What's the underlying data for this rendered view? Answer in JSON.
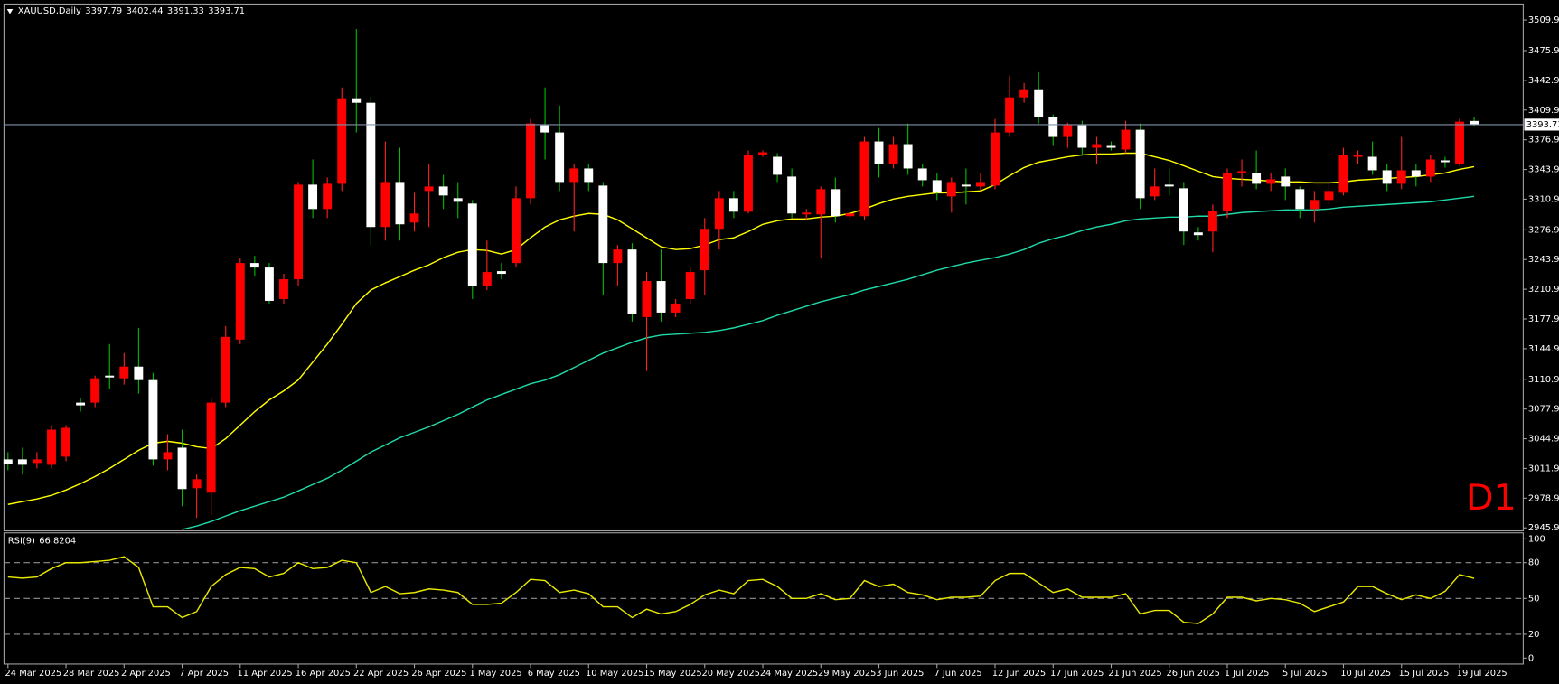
{
  "chart_data": [
    {
      "type": "candlestick",
      "title": "XAUUSD,Daily",
      "timeframe_label": "D1",
      "up_color": "#ff0000",
      "down_color": "#ffffff",
      "up_wick_color": "#ff2020",
      "down_wick_color": "#00c000",
      "price_line_color": "#8090a8",
      "categories": [
        "24 Mar 2025",
        null,
        null,
        null,
        "28 Mar 2025",
        null,
        null,
        null,
        "2 Apr 2025",
        null,
        null,
        null,
        "7 Apr 2025",
        null,
        null,
        null,
        "11 Apr 2025",
        null,
        null,
        null,
        "16 Apr 2025",
        null,
        null,
        null,
        "22 Apr 2025",
        null,
        null,
        null,
        "26 Apr 2025",
        null,
        null,
        null,
        "1 May 2025",
        null,
        null,
        null,
        "6 May 2025",
        null,
        null,
        null,
        "10 May 2025",
        null,
        null,
        null,
        "15 May 2025",
        null,
        null,
        null,
        "20 May 2025",
        null,
        null,
        null,
        "24 May 2025",
        null,
        null,
        null,
        "29 May 2025",
        null,
        null,
        null,
        "3 Jun 2025",
        null,
        null,
        null,
        "7 Jun 2025",
        null,
        null,
        null,
        "12 Jun 2025",
        null,
        null,
        null,
        "17 Jun 2025",
        null,
        null,
        null,
        "21 Jun 2025",
        null,
        null,
        null,
        "26 Jun 2025",
        null,
        null,
        null,
        "1 Jul 2025",
        null,
        null,
        null,
        "5 Jul 2025",
        null,
        null,
        null,
        "10 Jul 2025",
        null,
        null,
        null,
        "15 Jul 2025",
        null,
        null,
        null,
        "19 Jul 2025",
        null
      ],
      "open": [
        3022,
        3022,
        3018,
        3016,
        3025,
        3085,
        3085,
        3115,
        3112,
        3125,
        3110,
        3022,
        3035,
        2990,
        2985,
        3085,
        3155,
        3240,
        3235,
        3200,
        3222,
        3327,
        3300,
        3328,
        3422,
        3418,
        3280,
        3330,
        3285,
        3320,
        3325,
        3312,
        3306,
        3215,
        3231,
        3240,
        3312,
        3393,
        3385,
        3330,
        3345,
        3326,
        3240,
        3255,
        3180,
        3220,
        3185,
        3200,
        3232,
        3278,
        3312,
        3297,
        3360,
        3358,
        3336,
        3294,
        3294,
        3322,
        3292,
        3292,
        3375,
        3350,
        3372,
        3345,
        3332,
        3314,
        3327,
        3325,
        3326,
        3385,
        3424,
        3432,
        3402,
        3380,
        3393,
        3368,
        3370,
        3366,
        3388,
        3314,
        3327,
        3323,
        3274,
        3275,
        3298,
        3340,
        3340,
        3328,
        3336,
        3322,
        3300,
        3310,
        3318,
        3358,
        3358,
        3343,
        3328,
        3343,
        3336,
        3354,
        3350,
        3397.79
      ],
      "high": [
        3030,
        3035,
        3030,
        3060,
        3060,
        3090,
        3115,
        3150,
        3140,
        3168,
        3118,
        3050,
        3055,
        3005,
        3090,
        3170,
        3245,
        3248,
        3240,
        3228,
        3330,
        3355,
        3335,
        3435,
        3500,
        3425,
        3375,
        3368,
        3318,
        3350,
        3338,
        3330,
        3310,
        3265,
        3240,
        3325,
        3400,
        3435,
        3415,
        3350,
        3350,
        3330,
        3260,
        3262,
        3230,
        3255,
        3200,
        3235,
        3290,
        3320,
        3320,
        3365,
        3365,
        3362,
        3345,
        3300,
        3325,
        3335,
        3300,
        3380,
        3390,
        3380,
        3395,
        3350,
        3340,
        3335,
        3345,
        3340,
        3400,
        3448,
        3440,
        3452,
        3405,
        3396,
        3398,
        3380,
        3375,
        3398,
        3395,
        3345,
        3345,
        3330,
        3280,
        3305,
        3345,
        3355,
        3365,
        3340,
        3345,
        3325,
        3320,
        3330,
        3368,
        3365,
        3375,
        3350,
        3380,
        3350,
        3360,
        3358,
        3400,
        3402.44
      ],
      "low": [
        3010,
        3005,
        3012,
        3012,
        3020,
        3075,
        3080,
        3100,
        3105,
        3095,
        3015,
        3010,
        2970,
        2957,
        2960,
        3080,
        3150,
        3225,
        3195,
        3195,
        3215,
        3290,
        3290,
        3320,
        3385,
        3260,
        3265,
        3265,
        3275,
        3280,
        3300,
        3290,
        3200,
        3210,
        3222,
        3235,
        3305,
        3355,
        3320,
        3275,
        3320,
        3205,
        3215,
        3175,
        3120,
        3175,
        3180,
        3195,
        3205,
        3255,
        3290,
        3295,
        3358,
        3330,
        3290,
        3288,
        3245,
        3285,
        3288,
        3288,
        3335,
        3345,
        3338,
        3325,
        3310,
        3296,
        3305,
        3320,
        3322,
        3380,
        3418,
        3395,
        3370,
        3368,
        3360,
        3350,
        3365,
        3362,
        3300,
        3310,
        3315,
        3260,
        3265,
        3252,
        3290,
        3325,
        3322,
        3320,
        3310,
        3290,
        3285,
        3305,
        3315,
        3350,
        3338,
        3320,
        3322,
        3325,
        3330,
        3346,
        3348,
        3391.33
      ],
      "close": [
        3017,
        3016,
        3022,
        3055,
        3057,
        3082,
        3112,
        3113,
        3125,
        3110,
        3022,
        3030,
        2989,
        3000,
        3085,
        3158,
        3240,
        3235,
        3198,
        3222,
        3327,
        3300,
        3328,
        3422,
        3418,
        3280,
        3330,
        3283,
        3295,
        3325,
        3315,
        3308,
        3215,
        3230,
        3228,
        3312,
        3395,
        3385,
        3330,
        3345,
        3330,
        3240,
        3255,
        3183,
        3220,
        3185,
        3195,
        3230,
        3278,
        3312,
        3297,
        3360,
        3363,
        3338,
        3295,
        3296,
        3322,
        3292,
        3295,
        3375,
        3350,
        3372,
        3345,
        3332,
        3318,
        3330,
        3325,
        3330,
        3385,
        3424,
        3432,
        3402,
        3380,
        3393,
        3368,
        3372,
        3368,
        3388,
        3312,
        3325,
        3325,
        3275,
        3271,
        3298,
        3340,
        3342,
        3328,
        3333,
        3325,
        3300,
        3310,
        3320,
        3360,
        3360,
        3343,
        3328,
        3343,
        3336,
        3355,
        3352,
        3397,
        3393.71
      ],
      "moving_averages": [
        {
          "color": "#ffff00",
          "values": [
            2972,
            2975,
            2978,
            2982,
            2988,
            2995,
            3003,
            3012,
            3022,
            3032,
            3040,
            3042,
            3040,
            3036,
            3034,
            3045,
            3060,
            3075,
            3088,
            3098,
            3110,
            3130,
            3150,
            3172,
            3195,
            3210,
            3218,
            3225,
            3232,
            3238,
            3246,
            3252,
            3255,
            3254,
            3250,
            3255,
            3268,
            3280,
            3288,
            3292,
            3295,
            3294,
            3288,
            3278,
            3268,
            3258,
            3255,
            3256,
            3260,
            3266,
            3268,
            3275,
            3283,
            3287,
            3289,
            3289,
            3291,
            3292,
            3295,
            3300,
            3306,
            3311,
            3314,
            3316,
            3318,
            3318,
            3319,
            3320,
            3327,
            3337,
            3346,
            3352,
            3355,
            3358,
            3360,
            3361,
            3361,
            3362,
            3362,
            3358,
            3354,
            3348,
            3342,
            3336,
            3334,
            3333,
            3332,
            3331,
            3330,
            3330,
            3329,
            3329,
            3330,
            3332,
            3333,
            3334,
            3335,
            3336,
            3338,
            3340,
            3344,
            3347
          ]
        },
        {
          "color": "#20d8a8",
          "values": [
            null,
            null,
            null,
            null,
            null,
            null,
            null,
            null,
            null,
            null,
            null,
            null,
            2944,
            2948,
            2953,
            2959,
            2965,
            2970,
            2975,
            2980,
            2987,
            2994,
            3001,
            3010,
            3020,
            3030,
            3038,
            3046,
            3052,
            3058,
            3065,
            3072,
            3080,
            3088,
            3094,
            3100,
            3106,
            3110,
            3116,
            3124,
            3132,
            3140,
            3146,
            3152,
            3157,
            3160,
            3161,
            3162,
            3163,
            3165,
            3168,
            3172,
            3176,
            3182,
            3187,
            3192,
            3197,
            3201,
            3205,
            3210,
            3214,
            3218,
            3222,
            3227,
            3232,
            3236,
            3240,
            3243,
            3246,
            3250,
            3255,
            3262,
            3267,
            3271,
            3276,
            3280,
            3283,
            3287,
            3289,
            3290,
            3291,
            3291,
            3292,
            3292,
            3294,
            3296,
            3297,
            3298,
            3299,
            3299,
            3299,
            3300,
            3302,
            3303,
            3304,
            3305,
            3306,
            3307,
            3308,
            3310,
            3312,
            3314
          ]
        }
      ],
      "ylim": [
        2942.6,
        3527.6
      ],
      "yticks": [
        {
          "value": 3509.9,
          "label": "3509.90"
        },
        {
          "value": 3475.9,
          "label": "3475.90"
        },
        {
          "value": 3442.9,
          "label": "3442.90"
        },
        {
          "value": 3409.9,
          "label": "3409.90"
        },
        {
          "value": 3376.9,
          "label": "3376.90"
        },
        {
          "value": 3343.9,
          "label": "3343.90"
        },
        {
          "value": 3310.9,
          "label": "3310.90"
        },
        {
          "value": 3276.9,
          "label": "3276.90"
        },
        {
          "value": 3243.9,
          "label": "3243.90"
        },
        {
          "value": 3210.9,
          "label": "3210.90"
        },
        {
          "value": 3177.9,
          "label": "3177.90"
        },
        {
          "value": 3144.9,
          "label": "3144.90"
        },
        {
          "value": 3110.9,
          "label": "3110.90"
        },
        {
          "value": 3077.9,
          "label": "3077.90"
        },
        {
          "value": 3044.9,
          "label": "3044.90"
        },
        {
          "value": 3011.9,
          "label": "3011.90"
        },
        {
          "value": 2978.9,
          "label": "2978.90"
        },
        {
          "value": 2945.9,
          "label": "2945.90"
        }
      ]
    },
    {
      "type": "line",
      "title": "RSI(9)",
      "color": "#e8e800",
      "values": [
        68,
        67,
        68,
        75,
        80,
        80,
        81,
        82,
        85,
        76,
        43,
        43,
        34,
        39,
        60,
        70,
        76,
        75,
        68,
        71,
        80,
        75,
        76,
        82,
        80,
        55,
        60,
        54,
        55,
        58,
        57,
        55,
        45,
        45,
        46,
        55,
        66,
        65,
        55,
        57,
        54,
        43,
        43,
        34,
        41,
        37,
        39,
        45,
        53,
        57,
        54,
        65,
        66,
        60,
        50,
        50,
        54,
        49,
        50,
        65,
        60,
        62,
        55,
        53,
        49,
        51,
        51,
        52,
        65,
        71,
        71,
        63,
        55,
        58,
        51,
        51,
        51,
        54,
        37,
        40,
        40,
        30,
        29,
        37,
        51,
        51,
        48,
        50,
        49,
        46,
        39,
        43,
        47,
        60,
        60,
        54,
        49,
        53,
        50,
        56,
        70,
        66.8204
      ],
      "ylim": [
        -5,
        105
      ],
      "yticks": [
        100,
        80,
        50,
        20,
        0
      ],
      "levels": [
        80,
        50,
        20
      ]
    }
  ]
}
